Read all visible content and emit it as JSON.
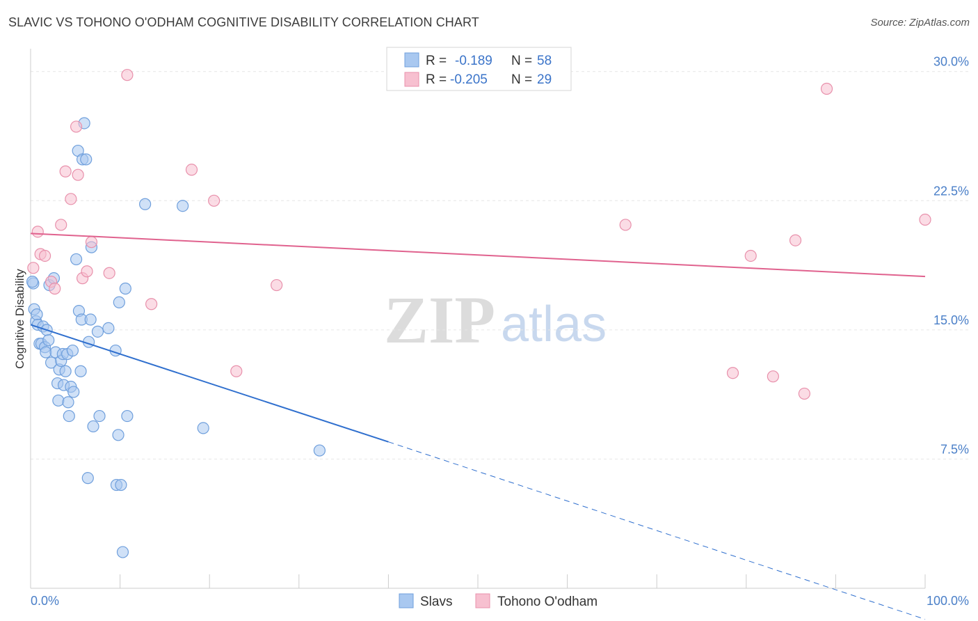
{
  "title": "SLAVIC VS TOHONO O'ODHAM COGNITIVE DISABILITY CORRELATION CHART",
  "source": "Source: ZipAtlas.com",
  "watermark": {
    "zip": "ZIP",
    "atlas": "atlas"
  },
  "colors": {
    "slavs_fill": "#a9c8f0",
    "slavs_stroke": "#6f9fdc",
    "slavs_line": "#2f6fce",
    "tohono_fill": "#f7c0d0",
    "tohono_stroke": "#e890ab",
    "tohono_line": "#e0628e",
    "grid": "#e6e6e6",
    "tick_text": "#4a7fc8"
  },
  "legend": {
    "r_label": "R =",
    "n_label": "N =",
    "slavs": {
      "r": "-0.189",
      "n": "58"
    },
    "tohono": {
      "r": "-0.205",
      "n": "29"
    }
  },
  "bottom_legend": {
    "slavs": "Slavs",
    "tohono": "Tohono O'odham"
  },
  "chart_data": {
    "type": "scatter",
    "title": "SLAVIC VS TOHONO O'ODHAM COGNITIVE DISABILITY CORRELATION CHART",
    "xlabel": "",
    "ylabel": "Cognitive Disability",
    "xlim": [
      0,
      100
    ],
    "ylim": [
      0,
      31
    ],
    "x_tick_labels": [
      "0.0%",
      "100.0%"
    ],
    "y_ticks": [
      7.5,
      15.0,
      22.5,
      30.0
    ],
    "y_tick_labels": [
      "7.5%",
      "15.0%",
      "22.5%",
      "30.0%"
    ],
    "grid": true,
    "legend_position": "top-center",
    "series": [
      {
        "name": "Slavs",
        "r": -0.189,
        "n": 58,
        "trend": {
          "x0": 0,
          "y0": 15.3,
          "x1": 40,
          "y1": 8.5,
          "dash_to_x": 100,
          "dash_to_y": -1.8
        },
        "points": [
          [
            0.3,
            17.7
          ],
          [
            0.4,
            16.2
          ],
          [
            0.6,
            15.5
          ],
          [
            0.7,
            15.9
          ],
          [
            0.8,
            15.3
          ],
          [
            1.0,
            14.2
          ],
          [
            1.2,
            14.2
          ],
          [
            1.4,
            15.2
          ],
          [
            1.6,
            14.0
          ],
          [
            1.7,
            13.7
          ],
          [
            1.8,
            15.0
          ],
          [
            2.0,
            14.4
          ],
          [
            2.1,
            17.6
          ],
          [
            2.3,
            13.1
          ],
          [
            2.6,
            18.0
          ],
          [
            2.8,
            13.7
          ],
          [
            3.0,
            11.9
          ],
          [
            3.1,
            10.9
          ],
          [
            3.2,
            12.7
          ],
          [
            3.4,
            13.2
          ],
          [
            3.6,
            13.6
          ],
          [
            3.7,
            11.8
          ],
          [
            3.9,
            12.6
          ],
          [
            4.1,
            13.6
          ],
          [
            4.2,
            10.8
          ],
          [
            4.3,
            10.0
          ],
          [
            4.5,
            11.7
          ],
          [
            4.7,
            13.8
          ],
          [
            4.8,
            11.4
          ],
          [
            5.1,
            19.1
          ],
          [
            5.3,
            25.4
          ],
          [
            5.4,
            16.1
          ],
          [
            5.6,
            12.6
          ],
          [
            5.7,
            15.6
          ],
          [
            5.8,
            24.9
          ],
          [
            6.0,
            27.0
          ],
          [
            6.2,
            24.9
          ],
          [
            6.4,
            6.4
          ],
          [
            6.5,
            14.3
          ],
          [
            6.7,
            15.6
          ],
          [
            6.8,
            19.8
          ],
          [
            7.0,
            9.4
          ],
          [
            7.5,
            14.9
          ],
          [
            7.7,
            10.0
          ],
          [
            8.7,
            15.1
          ],
          [
            9.5,
            13.8
          ],
          [
            9.6,
            6.0
          ],
          [
            9.8,
            8.9
          ],
          [
            9.9,
            16.6
          ],
          [
            10.1,
            6.0
          ],
          [
            10.3,
            2.1
          ],
          [
            10.6,
            17.4
          ],
          [
            10.8,
            10.0
          ],
          [
            12.8,
            22.3
          ],
          [
            17.0,
            22.2
          ],
          [
            19.3,
            9.3
          ],
          [
            32.3,
            8.0
          ],
          [
            0.2,
            17.8
          ]
        ]
      },
      {
        "name": "Tohono O'odham",
        "r": -0.205,
        "n": 29,
        "trend": {
          "x0": 0,
          "y0": 20.6,
          "x1": 100,
          "y1": 18.1
        },
        "points": [
          [
            0.3,
            18.6
          ],
          [
            0.8,
            20.7
          ],
          [
            1.1,
            19.4
          ],
          [
            1.6,
            19.3
          ],
          [
            2.3,
            17.8
          ],
          [
            2.7,
            17.4
          ],
          [
            3.4,
            21.1
          ],
          [
            3.9,
            24.2
          ],
          [
            4.5,
            22.6
          ],
          [
            5.1,
            26.8
          ],
          [
            5.3,
            24.0
          ],
          [
            5.8,
            18.0
          ],
          [
            6.3,
            18.4
          ],
          [
            6.8,
            20.1
          ],
          [
            8.8,
            18.3
          ],
          [
            10.8,
            29.8
          ],
          [
            13.5,
            16.5
          ],
          [
            18.0,
            24.3
          ],
          [
            20.5,
            22.5
          ],
          [
            23.0,
            12.6
          ],
          [
            27.5,
            17.6
          ],
          [
            66.5,
            21.1
          ],
          [
            78.5,
            12.5
          ],
          [
            80.5,
            19.3
          ],
          [
            83.0,
            12.3
          ],
          [
            85.5,
            20.2
          ],
          [
            86.5,
            11.3
          ],
          [
            89.0,
            29.0
          ],
          [
            100.0,
            21.4
          ]
        ]
      }
    ]
  }
}
